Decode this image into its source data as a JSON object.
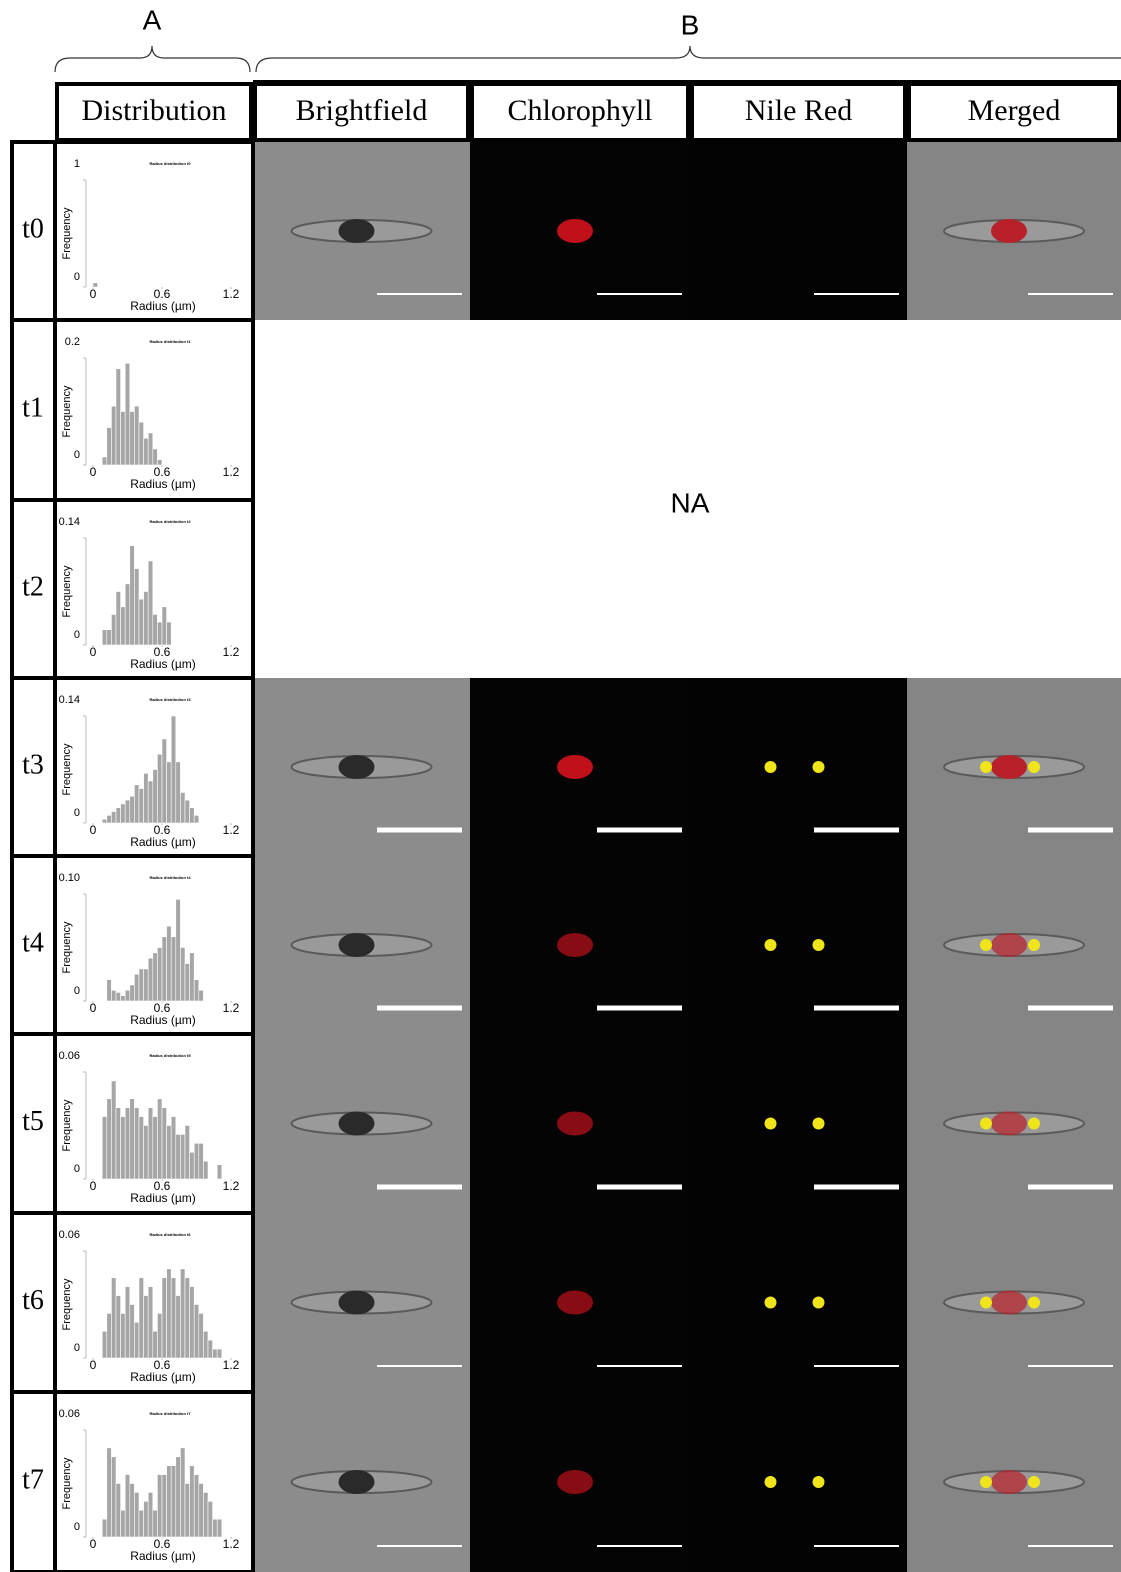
{
  "panel_labels": [
    "A",
    "B"
  ],
  "columns": [
    "Distribution",
    "Brightfield",
    "Chlorophyll",
    "Nile Red",
    "Merged"
  ],
  "na_text": "NA",
  "rows": [
    {
      "label": "t0",
      "distribution": {
        "type": "histogram",
        "title": "Radius distribution t0",
        "xlabel": "Radius (µm)",
        "ylabel": "Frequency",
        "color": "#a6a6a6",
        "bins": [
          0,
          0.04,
          0.08,
          0.12,
          0.16,
          0.2,
          0.24,
          0.28,
          0.32,
          0.36,
          0.4,
          0.44,
          0.48,
          0.52,
          0.56,
          0.6,
          0.64,
          0.68,
          0.72,
          0.76,
          0.8,
          0.84,
          0.88,
          0.92,
          0.96,
          1,
          1.04,
          1.08,
          1.12,
          1.16,
          1.2
        ],
        "values": [
          0.04,
          0,
          0,
          0,
          0,
          0,
          0,
          0,
          0,
          0,
          0,
          0,
          0,
          0,
          0,
          0,
          0,
          0,
          0,
          0,
          0,
          0,
          0,
          0,
          0,
          0,
          0,
          0,
          0,
          0
        ],
        "xlim": [
          0,
          1.2
        ],
        "ylim": [
          0,
          1
        ],
        "xticks": [
          0,
          0.6,
          1.2
        ],
        "yticks": [
          0,
          1
        ]
      }
    },
    {
      "label": "t1",
      "distribution": {
        "type": "histogram",
        "title": "Radius distribution t1",
        "xlabel": "Radius (µm)",
        "ylabel": "Frequency",
        "color": "#a6a6a6",
        "bins": [
          0,
          0.04,
          0.08,
          0.12,
          0.16,
          0.2,
          0.24,
          0.28,
          0.32,
          0.36,
          0.4,
          0.44,
          0.48,
          0.52,
          0.56,
          0.6,
          0.64,
          0.68,
          0.72,
          0.76,
          0.8,
          0.84,
          0.88,
          0.92,
          0.96,
          1,
          1.04,
          1.08,
          1.12,
          1.16,
          1.2
        ],
        "values": [
          0,
          0,
          0.015,
          0.07,
          0.11,
          0.18,
          0.1,
          0.19,
          0.1,
          0.11,
          0.08,
          0.05,
          0.06,
          0.03,
          0.01,
          0,
          0,
          0,
          0,
          0,
          0,
          0,
          0,
          0,
          0,
          0,
          0,
          0,
          0,
          0
        ],
        "xlim": [
          0,
          1.2
        ],
        "ylim": [
          0,
          0.2
        ],
        "xticks": [
          0,
          0.6,
          1.2
        ],
        "yticks": [
          0,
          0.2
        ]
      }
    },
    {
      "label": "t2",
      "distribution": {
        "type": "histogram",
        "title": "Radius distribution t2",
        "xlabel": "Radius (µm)",
        "ylabel": "Frequency",
        "color": "#a6a6a6",
        "bins": [
          0,
          0.04,
          0.08,
          0.12,
          0.16,
          0.2,
          0.24,
          0.28,
          0.32,
          0.36,
          0.4,
          0.44,
          0.48,
          0.52,
          0.56,
          0.6,
          0.64,
          0.68,
          0.72,
          0.76,
          0.8,
          0.84,
          0.88,
          0.92,
          0.96,
          1,
          1.04,
          1.08,
          1.12,
          1.16,
          1.2
        ],
        "values": [
          0,
          0,
          0.02,
          0.02,
          0.04,
          0.07,
          0.05,
          0.08,
          0.13,
          0.1,
          0.06,
          0.07,
          0.11,
          0.04,
          0.03,
          0.05,
          0.03,
          0,
          0,
          0,
          0,
          0,
          0,
          0,
          0,
          0,
          0,
          0,
          0,
          0
        ],
        "xlim": [
          0,
          1.2
        ],
        "ylim": [
          0,
          0.14
        ],
        "xticks": [
          0,
          0.6,
          1.2
        ],
        "yticks": [
          0,
          0.14
        ]
      }
    },
    {
      "label": "t3",
      "distribution": {
        "type": "histogram",
        "title": "Radius distribution t3",
        "xlabel": "Radius (µm)",
        "ylabel": "Frequency",
        "color": "#a6a6a6",
        "bins": [
          0,
          0.04,
          0.08,
          0.12,
          0.16,
          0.2,
          0.24,
          0.28,
          0.32,
          0.36,
          0.4,
          0.44,
          0.48,
          0.52,
          0.56,
          0.6,
          0.64,
          0.68,
          0.72,
          0.76,
          0.8,
          0.84,
          0.88,
          0.92,
          0.96,
          1,
          1.04,
          1.08,
          1.12,
          1.16,
          1.2
        ],
        "values": [
          0,
          0,
          0.005,
          0.01,
          0.015,
          0.02,
          0.025,
          0.03,
          0.035,
          0.05,
          0.045,
          0.065,
          0.055,
          0.07,
          0.09,
          0.11,
          0.08,
          0.14,
          0.08,
          0.04,
          0.03,
          0.02,
          0.01,
          0,
          0,
          0,
          0,
          0,
          0,
          0
        ],
        "xlim": [
          0,
          1.2
        ],
        "ylim": [
          0,
          0.14
        ],
        "xticks": [
          0,
          0.6,
          1.2
        ],
        "yticks": [
          0,
          0.14
        ]
      }
    },
    {
      "label": "t4",
      "distribution": {
        "type": "histogram",
        "title": "Radius distribution t4",
        "xlabel": "Radius (µm)",
        "ylabel": "Frequency",
        "color": "#a6a6a6",
        "bins": [
          0,
          0.04,
          0.08,
          0.12,
          0.16,
          0.2,
          0.24,
          0.28,
          0.32,
          0.36,
          0.4,
          0.44,
          0.48,
          0.52,
          0.56,
          0.6,
          0.64,
          0.68,
          0.72,
          0.76,
          0.8,
          0.84,
          0.88,
          0.92,
          0.96,
          1,
          1.04,
          1.08,
          1.12,
          1.16,
          1.2
        ],
        "values": [
          0,
          0,
          0,
          0.02,
          0.01,
          0.008,
          0.005,
          0.01,
          0.015,
          0.025,
          0.03,
          0.03,
          0.04,
          0.045,
          0.05,
          0.06,
          0.07,
          0.06,
          0.095,
          0.05,
          0.035,
          0.045,
          0.02,
          0.01,
          0,
          0,
          0,
          0,
          0,
          0
        ],
        "xlim": [
          0,
          1.2
        ],
        "ylim": [
          0,
          0.1
        ],
        "xticks": [
          0,
          0.6,
          1.2
        ],
        "yticks": [
          0,
          {
            "value": 0.1,
            "label": "0.10"
          }
        ]
      }
    },
    {
      "label": "t5",
      "distribution": {
        "type": "histogram",
        "title": "Radius distribution t5",
        "xlabel": "Radius (µm)",
        "ylabel": "Frequency",
        "color": "#a6a6a6",
        "bins": [
          0,
          0.04,
          0.08,
          0.12,
          0.16,
          0.2,
          0.24,
          0.28,
          0.32,
          0.36,
          0.4,
          0.44,
          0.48,
          0.52,
          0.56,
          0.6,
          0.64,
          0.68,
          0.72,
          0.76,
          0.8,
          0.84,
          0.88,
          0.92,
          0.96,
          1,
          1.04,
          1.08,
          1.12,
          1.16,
          1.2
        ],
        "values": [
          0,
          0,
          0.035,
          0.045,
          0.055,
          0.04,
          0.035,
          0.04,
          0.045,
          0.04,
          0.035,
          0.03,
          0.04,
          0.035,
          0.045,
          0.04,
          0.03,
          0.035,
          0.025,
          0.025,
          0.03,
          0.015,
          0.02,
          0.02,
          0.01,
          0,
          0,
          0.008,
          0,
          0
        ],
        "xlim": [
          0,
          1.2
        ],
        "ylim": [
          0,
          0.06
        ],
        "xticks": [
          0,
          0.6,
          1.2
        ],
        "yticks": [
          0,
          0.06
        ]
      }
    },
    {
      "label": "t6",
      "distribution": {
        "type": "histogram",
        "title": "Radius distribution t6",
        "xlabel": "Radius (µm)",
        "ylabel": "Frequency",
        "color": "#a6a6a6",
        "bins": [
          0,
          0.04,
          0.08,
          0.12,
          0.16,
          0.2,
          0.24,
          0.28,
          0.32,
          0.36,
          0.4,
          0.44,
          0.48,
          0.52,
          0.56,
          0.6,
          0.64,
          0.68,
          0.72,
          0.76,
          0.8,
          0.84,
          0.88,
          0.92,
          0.96,
          1,
          1.04,
          1.08,
          1.12,
          1.16,
          1.2
        ],
        "values": [
          0,
          0,
          0.015,
          0.025,
          0.045,
          0.035,
          0.025,
          0.04,
          0.03,
          0.02,
          0.045,
          0.035,
          0.04,
          0.015,
          0.025,
          0.045,
          0.05,
          0.045,
          0.035,
          0.05,
          0.045,
          0.04,
          0.03,
          0.025,
          0.015,
          0.01,
          0.005,
          0.005,
          0,
          0
        ],
        "xlim": [
          0,
          1.2
        ],
        "ylim": [
          0,
          0.06
        ],
        "xticks": [
          0,
          0.6,
          1.2
        ],
        "yticks": [
          0,
          0.06
        ]
      }
    },
    {
      "label": "t7",
      "distribution": {
        "type": "histogram",
        "title": "Radius distribution t7",
        "xlabel": "Radius (µm)",
        "ylabel": "Frequency",
        "color": "#a6a6a6",
        "bins": [
          0,
          0.04,
          0.08,
          0.12,
          0.16,
          0.2,
          0.24,
          0.28,
          0.32,
          0.36,
          0.4,
          0.44,
          0.48,
          0.52,
          0.56,
          0.6,
          0.64,
          0.68,
          0.72,
          0.76,
          0.8,
          0.84,
          0.88,
          0.92,
          0.96,
          1,
          1.04,
          1.08,
          1.12,
          1.16,
          1.2
        ],
        "values": [
          0,
          0,
          0.01,
          0.05,
          0.045,
          0.03,
          0.015,
          0.035,
          0.03,
          0.025,
          0.015,
          0.02,
          0.025,
          0.015,
          0.035,
          0.035,
          0.04,
          0.04,
          0.045,
          0.05,
          0.03,
          0.04,
          0.035,
          0.03,
          0.025,
          0.02,
          0.01,
          0.01,
          0,
          0
        ],
        "xlim": [
          0,
          1.2
        ],
        "ylim": [
          0,
          0.06
        ],
        "xticks": [
          0,
          0.6,
          1.2
        ],
        "yticks": [
          0,
          0.06
        ]
      }
    }
  ]
}
